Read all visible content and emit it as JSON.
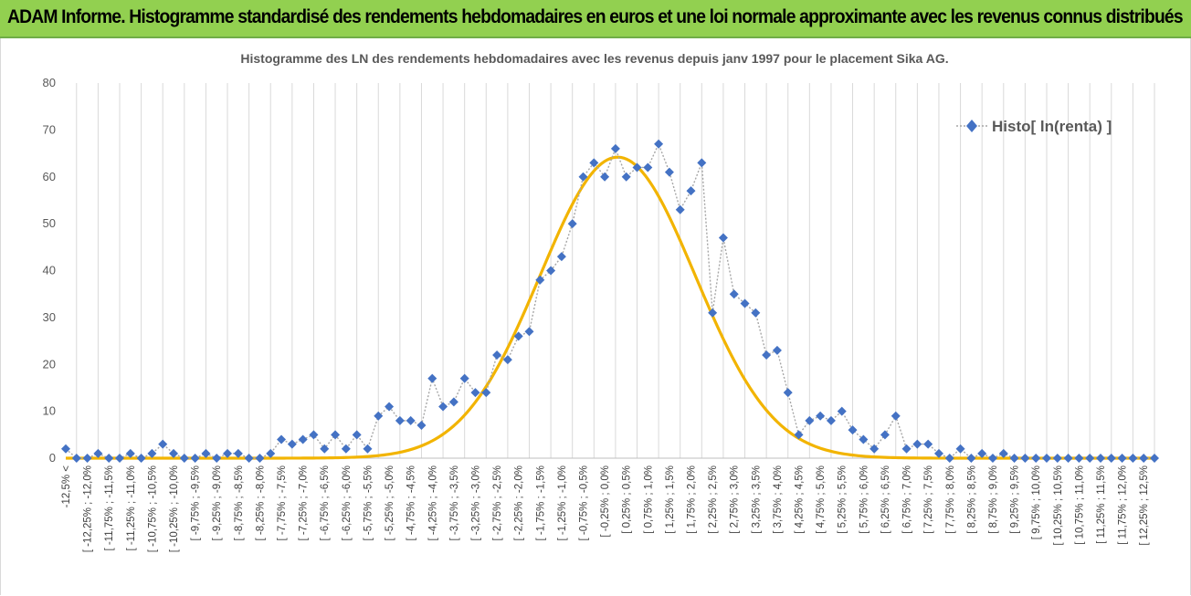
{
  "banner": {
    "text": "ADAM Informe. Histogramme standardisé des rendements hebdomadaires en euros et une loi normale approximante avec les revenus connus distribués"
  },
  "colors": {
    "banner_bg": "#92d050",
    "series_marker": "#4472c4",
    "series_line": "#a6a6a6",
    "normal_curve": "#f2b400",
    "gridline": "#d9d9d9"
  },
  "chart_data": {
    "type": "scatter",
    "title": "Histogramme  des LN des rendements hebdomadaires avec les revenus depuis janv 1997 pour le placement Sika AG.",
    "xlabel": "",
    "ylabel": "",
    "ylim": [
      0,
      80
    ],
    "yticks": [
      0,
      10,
      20,
      30,
      40,
      50,
      60,
      70,
      80
    ],
    "grid": "vertical",
    "legend_position": "top-right",
    "categories": [
      "-12,5% <",
      "[ -12,25% ; -12,0%",
      "[ -11,75% ; -11,5%",
      "[ -11,25% ; -11,0%",
      "[ -10,75% ; -10,5%",
      "[ -10,25% ; -10,0%",
      "[ -9,75% ; -9,5%",
      "[ -9,25% ; -9,0%",
      "[ -8,75% ; -8,5%",
      "[ -8,25% ; -8,0%",
      "[ -7,75% ; -7,5%",
      "[ -7,25% ; -7,0%",
      "[ -6,75% ; -6,5%",
      "[ -6,25% ; -6,0%",
      "[ -5,75% ; -5,5%",
      "[ -5,25% ; -5,0%",
      "[ -4,75% ; -4,5%",
      "[ -4,25% ; -4,0%",
      "[ -3,75% ; -3,5%",
      "[ -3,25% ; -3,0%",
      "[ -2,75% ; -2,5%",
      "[ -2,25% ; -2,0%",
      "[ -1,75% ; -1,5%",
      "[ -1,25% ; -1,0%",
      "[ -0,75% ; -0,5%",
      "[ -0,25% ; 0,0%",
      "[ 0,25% ; 0,5%",
      "[ 0,75% ; 1,0%",
      "[ 1,25% ; 1,5%",
      "[ 1,75% ; 2,0%",
      "[ 2,25% ; 2,5%",
      "[ 2,75% ; 3,0%",
      "[ 3,25% ; 3,5%",
      "[ 3,75% ; 4,0%",
      "[ 4,25% ; 4,5%",
      "[ 4,75% ; 5,0%",
      "[ 5,25% ; 5,5%",
      "[ 5,75% ; 6,0%",
      "[ 6,25% ; 6,5%",
      "[ 6,75% ; 7,0%",
      "[ 7,25% ; 7,5%",
      "[ 7,75% ; 8,0%",
      "[ 8,25% ; 8,5%",
      "[ 8,75% ; 9,0%",
      "[ 9,25% ; 9,5%",
      "[ 9,75% ; 10,0%",
      "[ 10,25% ; 10,5%",
      "[ 10,75% ; 11,0%",
      "[ 11,25% ; 11,5%",
      "[ 11,75% ; 12,0%",
      "[ 12,25% ; 12,5%"
    ],
    "series": [
      {
        "name": "Histo[ ln(renta) ]",
        "style": "diamond markers with dotted line",
        "values": [
          2,
          0,
          0,
          1,
          0,
          0,
          1,
          0,
          1,
          3,
          1,
          0,
          0,
          1,
          0,
          1,
          1,
          0,
          0,
          1,
          4,
          3,
          4,
          5,
          2,
          5,
          2,
          5,
          2,
          9,
          11,
          8,
          8,
          7,
          17,
          11,
          12,
          17,
          14,
          14,
          22,
          21,
          26,
          27,
          38,
          40,
          43,
          50,
          60,
          63,
          60,
          66,
          60,
          62,
          62,
          67,
          61,
          53,
          57,
          63,
          31,
          47,
          35,
          33,
          31,
          22,
          23,
          14,
          5,
          8,
          9,
          8,
          10,
          6,
          4,
          2,
          5,
          9,
          2,
          3,
          3,
          1,
          0,
          2,
          0,
          1,
          0,
          1,
          0,
          0,
          0,
          0,
          0,
          0,
          0,
          0,
          0,
          0,
          0,
          0,
          0,
          0
        ]
      },
      {
        "name": "",
        "style": "smooth line",
        "mean_percent": 0.3,
        "sd_percent": 1.8,
        "peak": 64.2
      }
    ]
  }
}
